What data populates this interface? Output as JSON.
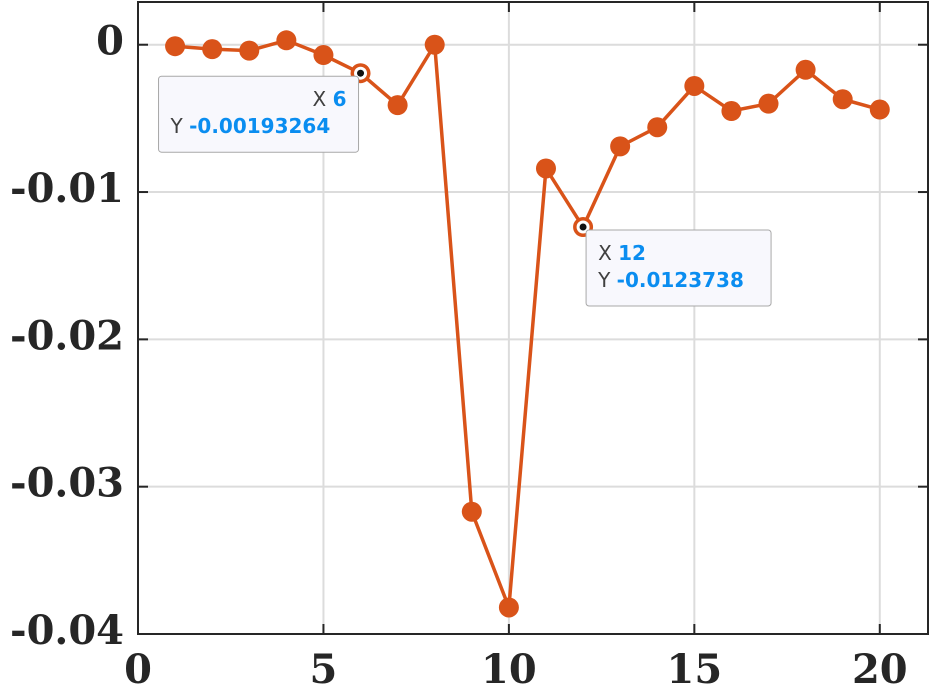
{
  "chart_data": {
    "type": "line",
    "x": [
      1,
      2,
      3,
      4,
      5,
      6,
      7,
      8,
      9,
      10,
      11,
      12,
      13,
      14,
      15,
      16,
      17,
      18,
      19,
      20
    ],
    "series": [
      {
        "color": "#d95319",
        "values": [
          -0.0001,
          -0.0003,
          -0.0004,
          0.0003,
          -0.0007,
          -0.00193264,
          -0.0041,
          0,
          -0.0317,
          -0.0382,
          -0.0084,
          -0.0123738,
          -0.0069,
          -0.0056,
          -0.0028,
          -0.0045,
          -0.004,
          -0.0017,
          -0.0037,
          -0.0044
        ]
      }
    ],
    "xlim": [
      0,
      21.3
    ],
    "ylim": [
      -0.04,
      0.0029
    ],
    "xticks": [
      0,
      5,
      10,
      15,
      20
    ],
    "yticks": [
      -0.04,
      -0.03,
      -0.02,
      -0.01,
      0
    ],
    "grid": true,
    "datatips": [
      {
        "x_label": "X",
        "x": 6,
        "y_label": "Y",
        "y": -0.00193264
      },
      {
        "x_label": "X",
        "x": 12,
        "y_label": "Y",
        "y": -0.0123738
      }
    ]
  }
}
